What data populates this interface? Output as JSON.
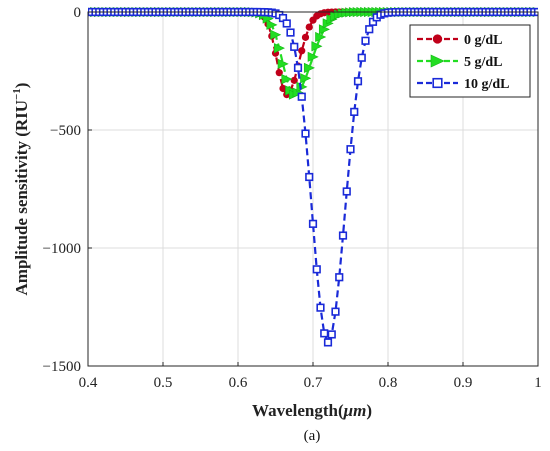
{
  "chart_data": {
    "type": "line",
    "xlabel": "Wavelength(",
    "xlabel_unit": "μm",
    "xlabel_close": ")",
    "ylabel": "Amplitude sensitivity (RIU",
    "ylabel_sup": "−1",
    "ylabel_close": ")",
    "xlim": [
      0.4,
      1.0
    ],
    "ylim": [
      -1500,
      0
    ],
    "xticks": [
      "0.4",
      "0.5",
      "0.6",
      "0.7",
      "0.8",
      "0.9",
      "1"
    ],
    "yticks": [
      "0",
      "-500",
      "-1000",
      "-1500"
    ],
    "grid": true,
    "legend_position": "top-right",
    "caption": "(a)",
    "series": [
      {
        "name": "0 g/dL",
        "color": "#c0001a",
        "marker": "circle",
        "line": "dashed",
        "x0": 0.4,
        "x1": 1.0,
        "minimum": 0.665,
        "depth": -350,
        "width_left": 0.018,
        "width_right": 0.023
      },
      {
        "name": "5 g/dL",
        "color": "#22dd22",
        "marker": "triangle-right",
        "line": "dashed",
        "x0": 0.4,
        "x1": 1.0,
        "minimum": 0.675,
        "depth": -350,
        "width_left": 0.022,
        "width_right": 0.032
      },
      {
        "name": "10 g/dL",
        "color": "#1a2ad8",
        "marker": "square",
        "line": "dashed",
        "x0": 0.4,
        "x1": 1.0,
        "minimum": 0.72,
        "depth": -1400,
        "width_left": 0.03,
        "width_right": 0.032
      }
    ]
  }
}
